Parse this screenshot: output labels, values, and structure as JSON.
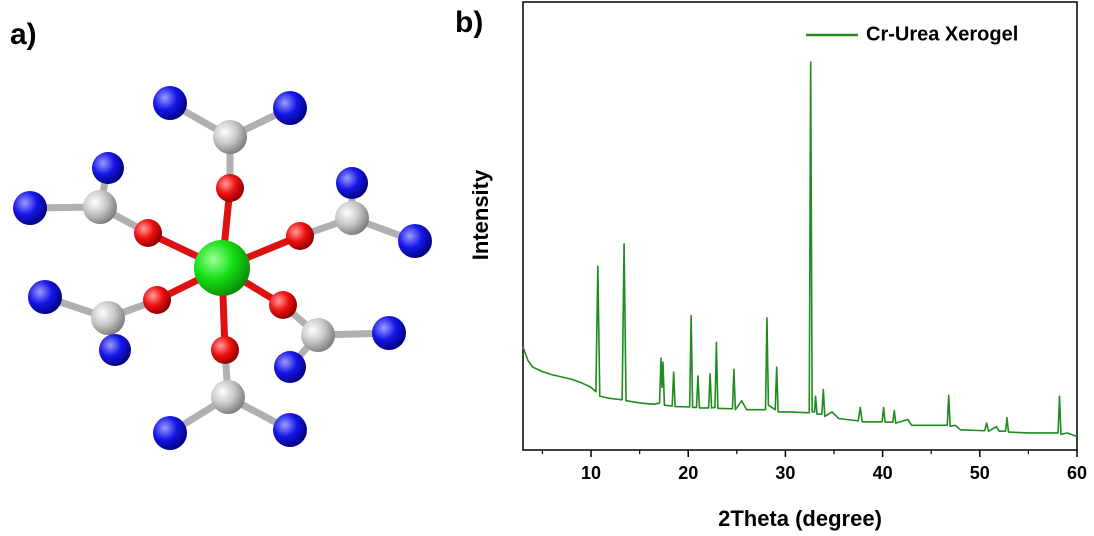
{
  "panel_labels": [
    "a)",
    "b)"
  ],
  "chart_data": {
    "type": "line",
    "x_label": "2Theta (degree)",
    "y_label": "Intensity",
    "xlim": [
      3,
      60
    ],
    "ylim": [
      0,
      100
    ],
    "xticks": [
      10,
      20,
      30,
      40,
      50,
      60
    ],
    "xminorticks": [
      5,
      15,
      25,
      35,
      45,
      55
    ],
    "legend": "top-right",
    "series": [
      {
        "name": "Cr-Urea Xerogel",
        "color": "#1e8c1e",
        "x": [
          3,
          3.5,
          4,
          5,
          6,
          7,
          8,
          9,
          10,
          10.5,
          10.7,
          10.9,
          12,
          13.2,
          13.4,
          13.6,
          15,
          16.5,
          17.05,
          17.2,
          17.3,
          17.4,
          17.55,
          18.35,
          18.5,
          18.65,
          20.15,
          20.3,
          20.45,
          20.85,
          21,
          21.15,
          22.1,
          22.25,
          22.4,
          22.75,
          22.9,
          23.05,
          24.55,
          24.7,
          24.85,
          25.5,
          26,
          27.95,
          28.1,
          28.25,
          28.95,
          29.1,
          29.25,
          30.5,
          32.45,
          32.6,
          32.75,
          33,
          33.1,
          33.25,
          33.75,
          33.9,
          34.05,
          34.8,
          35.5,
          37.5,
          37.7,
          37.9,
          39.95,
          40.1,
          40.25,
          41.05,
          41.2,
          41.35,
          42.6,
          43,
          46.65,
          46.8,
          46.95,
          47.5,
          48,
          50.5,
          50.7,
          50.9,
          51.7,
          52,
          52.65,
          52.8,
          52.95,
          55,
          58.05,
          58.2,
          58.35,
          59,
          60
        ],
        "values": [
          23,
          20,
          18.5,
          17.5,
          16.8,
          16.3,
          15.8,
          15,
          14,
          13,
          41,
          12,
          11.5,
          11.2,
          46,
          11,
          10.5,
          10.2,
          10.5,
          20.5,
          14,
          19.6,
          10,
          9.8,
          17.4,
          9.7,
          9.6,
          30,
          9.5,
          9.5,
          16.5,
          9.4,
          9.4,
          17,
          9.4,
          9.5,
          24,
          9.3,
          9.2,
          18,
          9,
          11,
          9,
          9,
          29.5,
          10,
          9,
          18.5,
          8.5,
          8.5,
          8.3,
          86.6,
          8.5,
          8.5,
          12,
          8,
          8,
          13.5,
          7.5,
          8.5,
          7,
          6.5,
          9.5,
          6.3,
          6.3,
          9.5,
          6.2,
          6.2,
          8.8,
          6,
          6.8,
          5.5,
          5.5,
          12.2,
          5.3,
          5.5,
          4.5,
          4.3,
          6,
          4.2,
          5.2,
          4.2,
          4.2,
          7.2,
          4,
          3.8,
          3.8,
          12,
          3.5,
          3.8,
          3
        ]
      }
    ]
  }
}
